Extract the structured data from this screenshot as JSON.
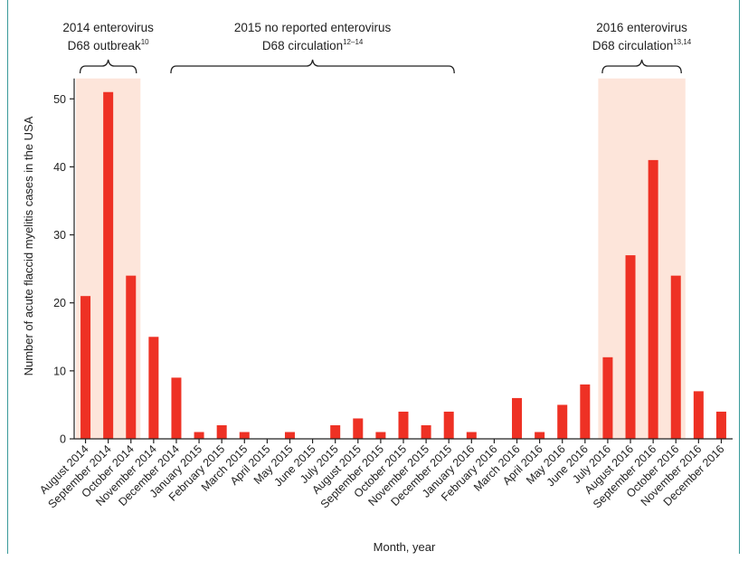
{
  "chart_data": {
    "type": "bar",
    "xlabel": "Month, year",
    "ylabel": "Number of acute flaccid myelitis cases in the USA",
    "ylim": [
      0,
      53
    ],
    "yticks": [
      0,
      10,
      20,
      30,
      40,
      50
    ],
    "grid": false,
    "colors": {
      "bar": "#ee3124",
      "highlight": "#fde5da",
      "frame": "#3a9a9a"
    },
    "categories": [
      "August 2014",
      "September 2014",
      "October 2014",
      "November 2014",
      "December 2014",
      "January 2015",
      "February 2015",
      "March 2015",
      "April 2015",
      "May 2015",
      "June 2015",
      "July 2015",
      "August 2015",
      "September 2015",
      "October 2015",
      "November 2015",
      "December 2015",
      "January 2016",
      "February 2016",
      "March 2016",
      "April 2016",
      "May 2016",
      "June 2016",
      "July 2016",
      "August 2016",
      "September 2016",
      "October 2016",
      "November 2016",
      "December 2016"
    ],
    "values": [
      21,
      51,
      24,
      15,
      9,
      1,
      2,
      1,
      0,
      1,
      0,
      2,
      3,
      1,
      4,
      2,
      4,
      1,
      0,
      6,
      1,
      5,
      8,
      12,
      27,
      41,
      24,
      7,
      4
    ],
    "highlight_ranges": [
      {
        "from": "August 2014",
        "to": "October 2014"
      },
      {
        "from": "July 2016",
        "to": "October 2016"
      }
    ],
    "annotations": [
      {
        "line1": "2014 enterovirus",
        "line2": "D68 outbreak",
        "sup": "10",
        "from": "August 2014",
        "to": "October 2014"
      },
      {
        "line1": "2015 no reported enterovirus",
        "line2": "D68 circulation",
        "sup": "12–14",
        "from": "December 2014",
        "to": "December 2015"
      },
      {
        "line1": "2016 enterovirus",
        "line2": "D68 circulation",
        "sup": "13,14",
        "from": "July 2016",
        "to": "October 2016"
      }
    ]
  }
}
